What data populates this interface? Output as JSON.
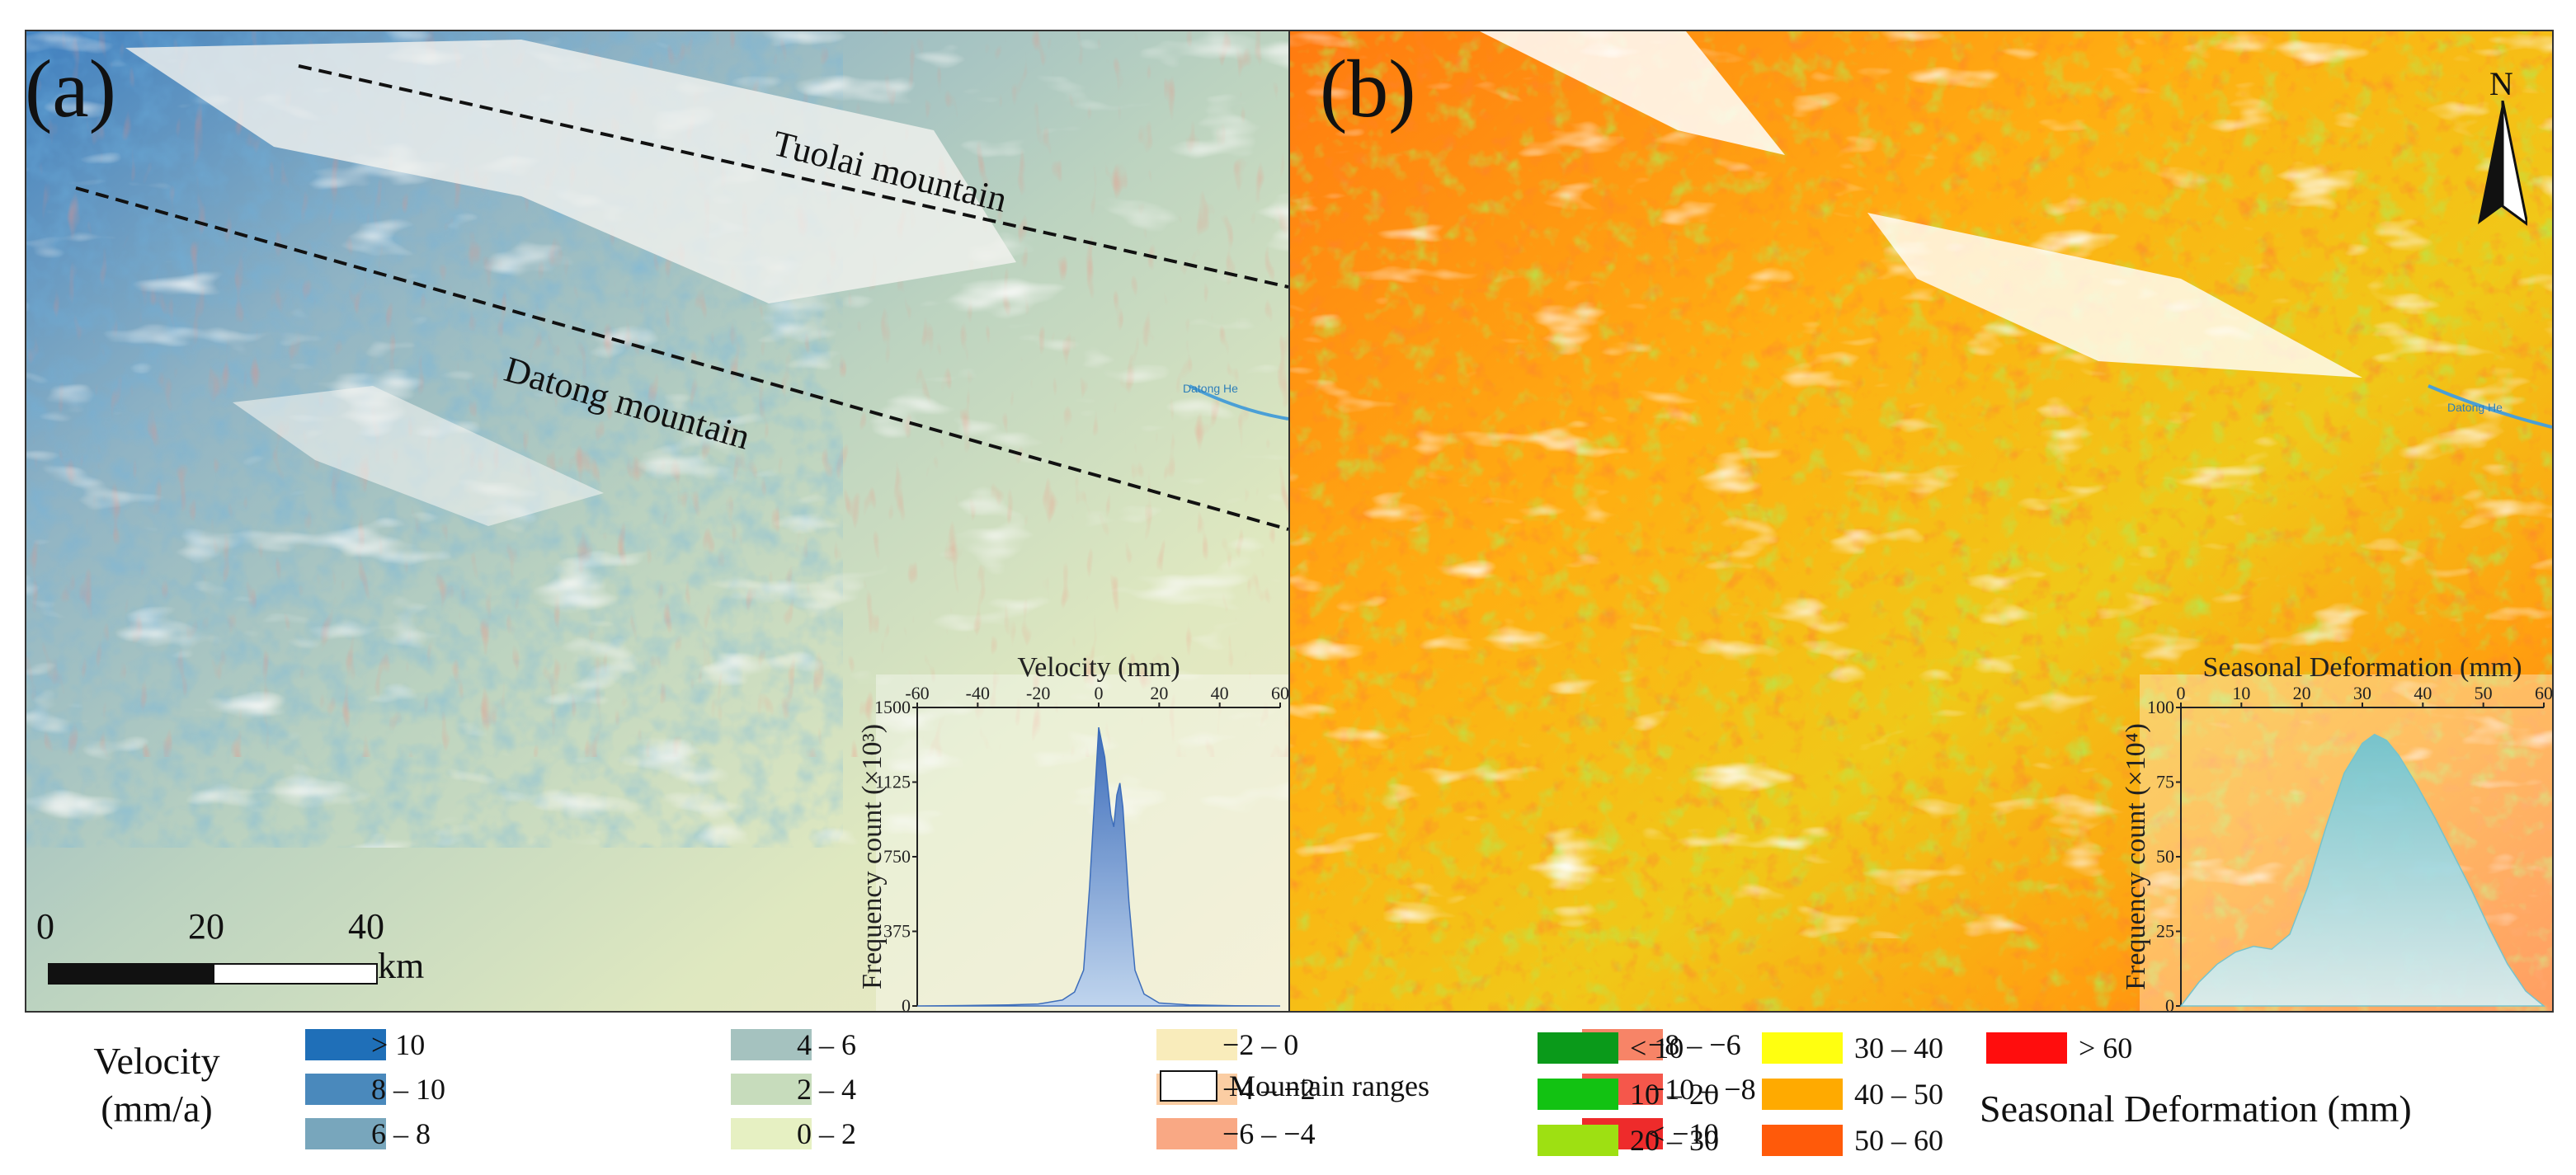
{
  "panel_a": {
    "label": "(a)",
    "mountains": [
      {
        "name": "Tuolai mountain"
      },
      {
        "name": "Datong mountain"
      }
    ],
    "river_labels": [
      "Datong He"
    ],
    "scale_bar": {
      "ticks": [
        "0",
        "20",
        "40"
      ],
      "unit": "km"
    },
    "inset": {
      "title": "Velocity (mm)",
      "y_label": "Frequency count (×10³)",
      "x_ticks": [
        "-60",
        "-40",
        "-20",
        "0",
        "20",
        "40",
        "60"
      ],
      "y_ticks": [
        "1500",
        "1125",
        "750",
        "375",
        "0"
      ]
    }
  },
  "panel_b": {
    "label": "(b)",
    "north_label": "N",
    "river_labels": [
      "Datong He"
    ],
    "inset": {
      "title": "Seasonal Deformation (mm)",
      "y_label": "Frequency count (×10⁴)",
      "x_ticks": [
        "0",
        "10",
        "20",
        "30",
        "40",
        "50",
        "60"
      ],
      "y_ticks": [
        "100",
        "75",
        "50",
        "25",
        "0"
      ]
    }
  },
  "chart_data": [
    {
      "type": "area",
      "title": "Velocity (mm)",
      "xlabel": "Velocity (mm)",
      "ylabel": "Frequency count (×10³)",
      "xlim": [
        -60,
        60
      ],
      "ylim": [
        0,
        1500
      ],
      "series": [
        {
          "x": [
            -60,
            -45,
            -30,
            -20,
            -12,
            -8,
            -5,
            -3,
            0,
            2,
            4,
            5,
            6,
            7,
            8,
            10,
            12,
            15,
            20,
            30,
            45,
            60
          ],
          "values": [
            0,
            2,
            5,
            10,
            30,
            70,
            180,
            600,
            1400,
            1250,
            960,
            900,
            1060,
            1120,
            1000,
            520,
            180,
            60,
            15,
            5,
            1,
            0
          ]
        }
      ]
    },
    {
      "type": "area",
      "title": "Seasonal Deformation (mm)",
      "xlabel": "Seasonal Deformation (mm)",
      "ylabel": "Frequency count (×10⁴)",
      "xlim": [
        0,
        60
      ],
      "ylim": [
        0,
        100
      ],
      "series": [
        {
          "x": [
            0,
            3,
            6,
            9,
            12,
            15,
            18,
            21,
            24,
            27,
            30,
            32,
            34,
            36,
            39,
            42,
            45,
            48,
            51,
            54,
            57,
            60
          ],
          "values": [
            0,
            8,
            14,
            18,
            20,
            19,
            24,
            40,
            60,
            78,
            88,
            91,
            89,
            84,
            74,
            63,
            51,
            39,
            26,
            14,
            5,
            0
          ]
        }
      ]
    }
  ],
  "legend_velocity": {
    "title_line1": "Velocity",
    "title_line2": "(mm/a)",
    "items": [
      {
        "label": "> 10",
        "color": "#1f6fb8"
      },
      {
        "label": "8 – 10",
        "color": "#4a89bc"
      },
      {
        "label": "6 – 8",
        "color": "#78a6bc"
      },
      {
        "label": "4 – 6",
        "color": "#a5c2bf"
      },
      {
        "label": "2 – 4",
        "color": "#c7dcbc"
      },
      {
        "label": "0 – 2",
        "color": "#e6f0c2"
      },
      {
        "label": "−2 – 0",
        "color": "#f9ecbb"
      },
      {
        "label": "−4 – −2",
        "color": "#fbcda3"
      },
      {
        "label": "−6 – −4",
        "color": "#f9a884"
      },
      {
        "label": "−8 – −6",
        "color": "#f78467"
      },
      {
        "label": "−10 – −8",
        "color": "#f5574b"
      },
      {
        "label": "< −10",
        "color": "#ee2b2b"
      }
    ],
    "mountain_label": "Mountain ranges"
  },
  "legend_seasonal": {
    "title": "Seasonal Deformation (mm)",
    "items": [
      {
        "label": "< 10",
        "color": "#0a9a1a"
      },
      {
        "label": "10 – 20",
        "color": "#12c212"
      },
      {
        "label": "20 – 30",
        "color": "#9ee012"
      },
      {
        "label": "30 – 40",
        "color": "#ffff10"
      },
      {
        "label": "40 – 50",
        "color": "#ffaa00"
      },
      {
        "label": "50 – 60",
        "color": "#ff5a0a"
      },
      {
        "label": "> 60",
        "color": "#ff0d0d"
      }
    ]
  }
}
